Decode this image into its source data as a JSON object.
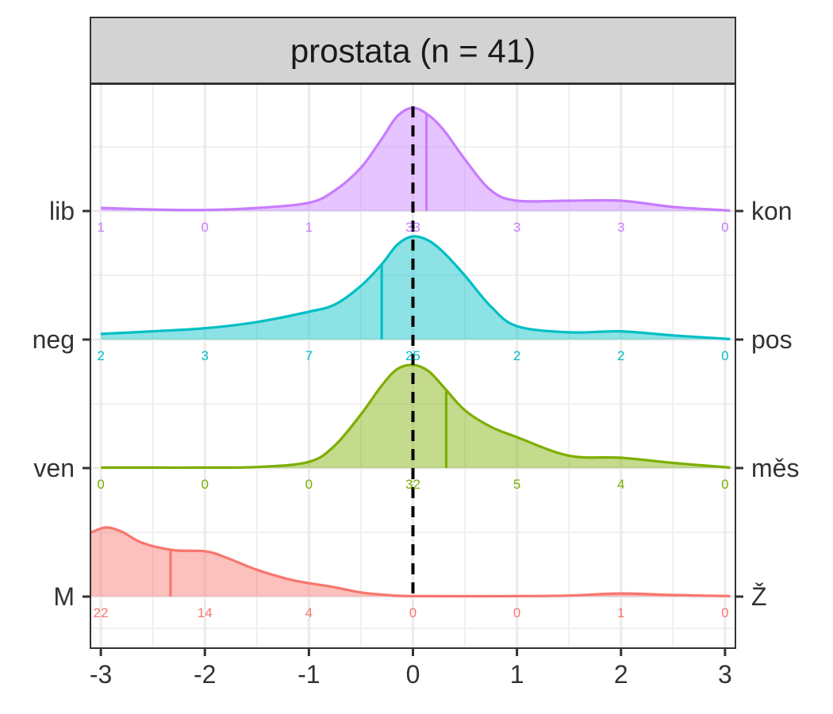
{
  "chart_data": {
    "type": "ridgeline-density",
    "title": "prostata (n = 41)",
    "xlabel": "",
    "ylabel": "",
    "xlim": [
      -3.1,
      3.1
    ],
    "x_ticks": [
      "-3",
      "-2",
      "-1",
      "0",
      "1",
      "2",
      "3"
    ],
    "x_tick_values": [
      -3,
      -2,
      -1,
      0,
      1,
      2,
      3
    ],
    "reference_line_x": 0,
    "grid": true,
    "count_positions": [
      -3,
      -2,
      -1,
      0,
      1,
      2,
      3
    ],
    "series": [
      {
        "left_label": "lib",
        "right_label": "kon",
        "color": "#C77CFF",
        "median": 0.13,
        "counts": [
          "1",
          "0",
          "1",
          "33",
          "3",
          "3",
          "0"
        ],
        "density": [
          [
            -3.0,
            0.03
          ],
          [
            -2.5,
            0.015
          ],
          [
            -2.0,
            0.01
          ],
          [
            -1.5,
            0.03
          ],
          [
            -1.0,
            0.08
          ],
          [
            -0.75,
            0.2
          ],
          [
            -0.5,
            0.42
          ],
          [
            -0.3,
            0.7
          ],
          [
            -0.15,
            0.92
          ],
          [
            0,
            1.0
          ],
          [
            0.15,
            0.93
          ],
          [
            0.3,
            0.78
          ],
          [
            0.5,
            0.5
          ],
          [
            0.75,
            0.2
          ],
          [
            1.0,
            0.1
          ],
          [
            1.5,
            0.1
          ],
          [
            2.0,
            0.1
          ],
          [
            2.5,
            0.04
          ],
          [
            3.05,
            0.005
          ]
        ]
      },
      {
        "left_label": "neg",
        "right_label": "pos",
        "color": "#00BFC4",
        "median": -0.3,
        "counts": [
          "2",
          "3",
          "7",
          "25",
          "2",
          "2",
          "0"
        ],
        "density": [
          [
            -3.0,
            0.055
          ],
          [
            -2.5,
            0.08
          ],
          [
            -2.0,
            0.11
          ],
          [
            -1.5,
            0.17
          ],
          [
            -1.0,
            0.27
          ],
          [
            -0.75,
            0.34
          ],
          [
            -0.5,
            0.52
          ],
          [
            -0.3,
            0.73
          ],
          [
            -0.15,
            0.92
          ],
          [
            0,
            1.0
          ],
          [
            0.15,
            0.96
          ],
          [
            0.3,
            0.84
          ],
          [
            0.5,
            0.62
          ],
          [
            0.75,
            0.32
          ],
          [
            1.0,
            0.13
          ],
          [
            1.5,
            0.07
          ],
          [
            2.0,
            0.08
          ],
          [
            2.5,
            0.04
          ],
          [
            3.05,
            0.005
          ]
        ]
      },
      {
        "left_label": "ven",
        "right_label": "měs",
        "color": "#7CAE00",
        "median": 0.32,
        "counts": [
          "0",
          "0",
          "0",
          "32",
          "5",
          "4",
          "0"
        ],
        "density": [
          [
            -3.0,
            0.005
          ],
          [
            -2.5,
            0.005
          ],
          [
            -2.0,
            0.005
          ],
          [
            -1.5,
            0.01
          ],
          [
            -1.0,
            0.06
          ],
          [
            -0.75,
            0.22
          ],
          [
            -0.5,
            0.52
          ],
          [
            -0.3,
            0.8
          ],
          [
            -0.15,
            0.96
          ],
          [
            0,
            1.0
          ],
          [
            0.15,
            0.94
          ],
          [
            0.3,
            0.78
          ],
          [
            0.5,
            0.56
          ],
          [
            0.75,
            0.4
          ],
          [
            1.0,
            0.3
          ],
          [
            1.5,
            0.12
          ],
          [
            2.0,
            0.1
          ],
          [
            2.5,
            0.05
          ],
          [
            3.05,
            0.005
          ]
        ]
      },
      {
        "left_label": "M",
        "right_label": "Ž",
        "color": "#F8766D",
        "median": -2.33,
        "counts": [
          "22",
          "14",
          "4",
          "0",
          "0",
          "1",
          "0"
        ],
        "density": [
          [
            -3.1,
            0.62
          ],
          [
            -2.95,
            0.67
          ],
          [
            -2.8,
            0.63
          ],
          [
            -2.6,
            0.52
          ],
          [
            -2.3,
            0.45
          ],
          [
            -2.0,
            0.44
          ],
          [
            -1.8,
            0.38
          ],
          [
            -1.5,
            0.26
          ],
          [
            -1.2,
            0.17
          ],
          [
            -1.0,
            0.13
          ],
          [
            -0.75,
            0.09
          ],
          [
            -0.5,
            0.04
          ],
          [
            -0.25,
            0.015
          ],
          [
            0,
            0.005
          ],
          [
            1.0,
            0.005
          ],
          [
            1.5,
            0.01
          ],
          [
            2.0,
            0.03
          ],
          [
            2.5,
            0.015
          ],
          [
            3.05,
            0.005
          ]
        ]
      }
    ]
  }
}
